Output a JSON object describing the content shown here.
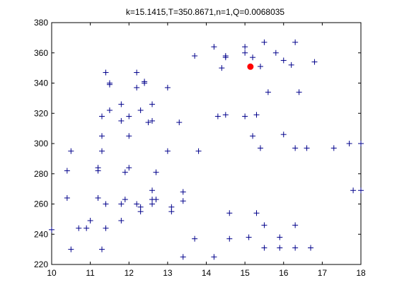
{
  "chart_data": {
    "type": "scatter",
    "title": "k=15.1415,T=350.8671,n=1,Q=0.0068035",
    "xlabel": "",
    "ylabel": "",
    "xlim": [
      10,
      18
    ],
    "ylim": [
      220,
      380
    ],
    "xticks": [
      10,
      11,
      12,
      13,
      14,
      15,
      16,
      17,
      18
    ],
    "yticks": [
      220,
      240,
      260,
      280,
      300,
      320,
      340,
      360,
      380
    ],
    "grid": false,
    "series": [
      {
        "marker": "plus",
        "color": "#00008b",
        "points": [
          [
            10.0,
            243
          ],
          [
            10.4,
            264
          ],
          [
            10.4,
            282
          ],
          [
            10.5,
            295
          ],
          [
            10.5,
            230
          ],
          [
            10.7,
            244
          ],
          [
            10.9,
            244
          ],
          [
            11.0,
            249
          ],
          [
            11.2,
            264
          ],
          [
            11.2,
            282
          ],
          [
            11.2,
            284
          ],
          [
            11.3,
            230
          ],
          [
            11.3,
            318
          ],
          [
            11.3,
            305
          ],
          [
            11.3,
            295
          ],
          [
            11.4,
            347
          ],
          [
            11.4,
            260
          ],
          [
            11.4,
            244
          ],
          [
            11.5,
            340
          ],
          [
            11.5,
            339
          ],
          [
            11.5,
            322
          ],
          [
            11.8,
            326
          ],
          [
            11.8,
            315
          ],
          [
            11.8,
            249
          ],
          [
            11.8,
            260
          ],
          [
            11.9,
            263
          ],
          [
            11.9,
            281
          ],
          [
            12.0,
            284
          ],
          [
            12.0,
            305
          ],
          [
            12.0,
            318
          ],
          [
            12.2,
            347
          ],
          [
            12.2,
            337
          ],
          [
            12.2,
            260
          ],
          [
            12.3,
            255
          ],
          [
            12.3,
            258
          ],
          [
            12.3,
            322
          ],
          [
            12.4,
            340
          ],
          [
            12.4,
            341
          ],
          [
            12.5,
            314
          ],
          [
            12.6,
            315
          ],
          [
            12.6,
            326
          ],
          [
            12.6,
            269
          ],
          [
            12.6,
            263
          ],
          [
            12.6,
            260
          ],
          [
            12.7,
            281
          ],
          [
            12.7,
            263
          ],
          [
            13.0,
            337
          ],
          [
            13.0,
            295
          ],
          [
            13.1,
            258
          ],
          [
            13.1,
            255
          ],
          [
            13.3,
            314
          ],
          [
            13.4,
            262
          ],
          [
            13.4,
            268
          ],
          [
            13.4,
            225
          ],
          [
            13.7,
            358
          ],
          [
            13.7,
            237
          ],
          [
            13.8,
            295
          ],
          [
            14.2,
            364
          ],
          [
            14.2,
            225
          ],
          [
            14.3,
            318
          ],
          [
            14.4,
            350
          ],
          [
            14.5,
            357
          ],
          [
            14.5,
            358
          ],
          [
            14.5,
            319
          ],
          [
            14.6,
            254
          ],
          [
            14.6,
            237
          ],
          [
            15.0,
            364
          ],
          [
            15.0,
            360
          ],
          [
            15.0,
            318
          ],
          [
            15.1,
            238
          ],
          [
            15.2,
            305
          ],
          [
            15.2,
            357
          ],
          [
            15.3,
            319
          ],
          [
            15.3,
            254
          ],
          [
            15.4,
            297
          ],
          [
            15.4,
            351
          ],
          [
            15.5,
            367
          ],
          [
            15.5,
            246
          ],
          [
            15.5,
            231
          ],
          [
            15.6,
            334
          ],
          [
            15.8,
            360
          ],
          [
            15.9,
            231
          ],
          [
            15.9,
            238
          ],
          [
            16.0,
            355
          ],
          [
            16.0,
            306
          ],
          [
            16.2,
            352
          ],
          [
            16.3,
            367
          ],
          [
            16.3,
            297
          ],
          [
            16.3,
            246
          ],
          [
            16.3,
            231
          ],
          [
            16.4,
            334
          ],
          [
            16.6,
            297
          ],
          [
            16.7,
            231
          ],
          [
            16.8,
            354
          ],
          [
            17.3,
            297
          ],
          [
            17.7,
            300
          ],
          [
            17.8,
            269
          ],
          [
            18.0,
            300
          ],
          [
            18.0,
            269
          ]
        ]
      },
      {
        "marker": "circle",
        "color": "#ff0000",
        "points": [
          [
            15.1415,
            350.8671
          ]
        ]
      }
    ]
  }
}
